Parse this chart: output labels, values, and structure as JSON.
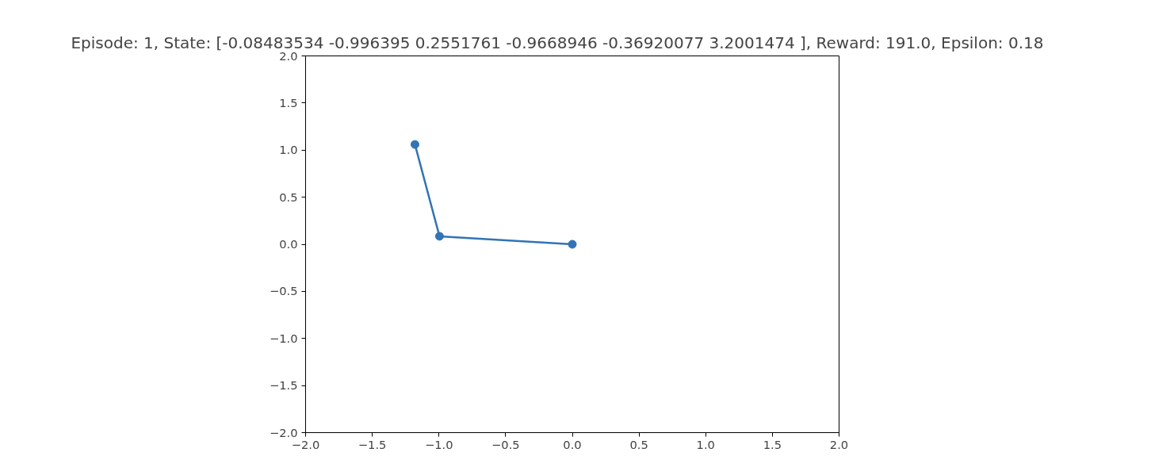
{
  "chart_data": {
    "type": "line",
    "title": "Episode: 1, State: [-0.08483534 -0.996395    0.2551761  -0.9668946  -0.36920077  3.2001474 ], Reward: 191.0, Epsilon: 0.18",
    "x": [
      0.0,
      -0.996,
      -1.18
    ],
    "series": [
      {
        "color": "#3274b5",
        "values": [
          0.0,
          0.085,
          1.06
        ]
      }
    ],
    "xlim": [
      -2.0,
      2.0
    ],
    "ylim": [
      -2.0,
      2.0
    ],
    "xticks": [
      {
        "value": -2.0,
        "label": "−2.0"
      },
      {
        "value": -1.5,
        "label": "−1.5"
      },
      {
        "value": -1.0,
        "label": "−1.0"
      },
      {
        "value": -0.5,
        "label": "−0.5"
      },
      {
        "value": 0.0,
        "label": "0.0"
      },
      {
        "value": 0.5,
        "label": "0.5"
      },
      {
        "value": 1.0,
        "label": "1.0"
      },
      {
        "value": 1.5,
        "label": "1.5"
      },
      {
        "value": 2.0,
        "label": "2.0"
      }
    ],
    "yticks": [
      {
        "value": -2.0,
        "label": "−2.0"
      },
      {
        "value": -1.5,
        "label": "−1.5"
      },
      {
        "value": -1.0,
        "label": "−1.0"
      },
      {
        "value": -0.5,
        "label": "−0.5"
      },
      {
        "value": 0.0,
        "label": "0.0"
      },
      {
        "value": 0.5,
        "label": "0.5"
      },
      {
        "value": 1.0,
        "label": "1.0"
      },
      {
        "value": 1.5,
        "label": "1.5"
      },
      {
        "value": 2.0,
        "label": "2.0"
      }
    ],
    "grid": false,
    "marker": "circle",
    "line_style": "solid"
  }
}
